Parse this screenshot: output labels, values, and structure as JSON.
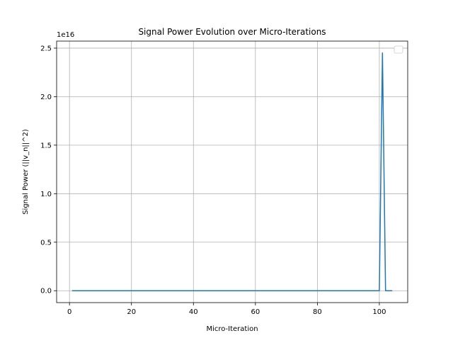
{
  "chart_data": {
    "type": "line",
    "title": "Signal Power Evolution over Micro-Iterations",
    "xlabel": "Micro-Iteration",
    "ylabel": "Signal Power (||v_n||^2)",
    "y_offset_label": "1e16",
    "y_scale": 1e+16,
    "xlim": [
      -4.15,
      109.15
    ],
    "ylim": [
      -0.1225,
      2.5725
    ],
    "x_ticks": [
      0,
      20,
      40,
      60,
      80,
      100
    ],
    "x_tick_labels": [
      "0",
      "20",
      "40",
      "60",
      "80",
      "100"
    ],
    "y_ticks": [
      0.0,
      0.5,
      1.0,
      1.5,
      2.0,
      2.5
    ],
    "y_tick_labels": [
      "0.0",
      "0.5",
      "1.0",
      "1.5",
      "2.0",
      "2.5"
    ],
    "grid": true,
    "legend": {
      "position": "top-right",
      "entries": []
    },
    "series": [
      {
        "name": "",
        "color": "#1f77b4",
        "x": [
          1,
          100,
          101,
          102,
          104
        ],
        "y": [
          0.0,
          0.0,
          2.45,
          0.0,
          0.0
        ]
      }
    ]
  }
}
